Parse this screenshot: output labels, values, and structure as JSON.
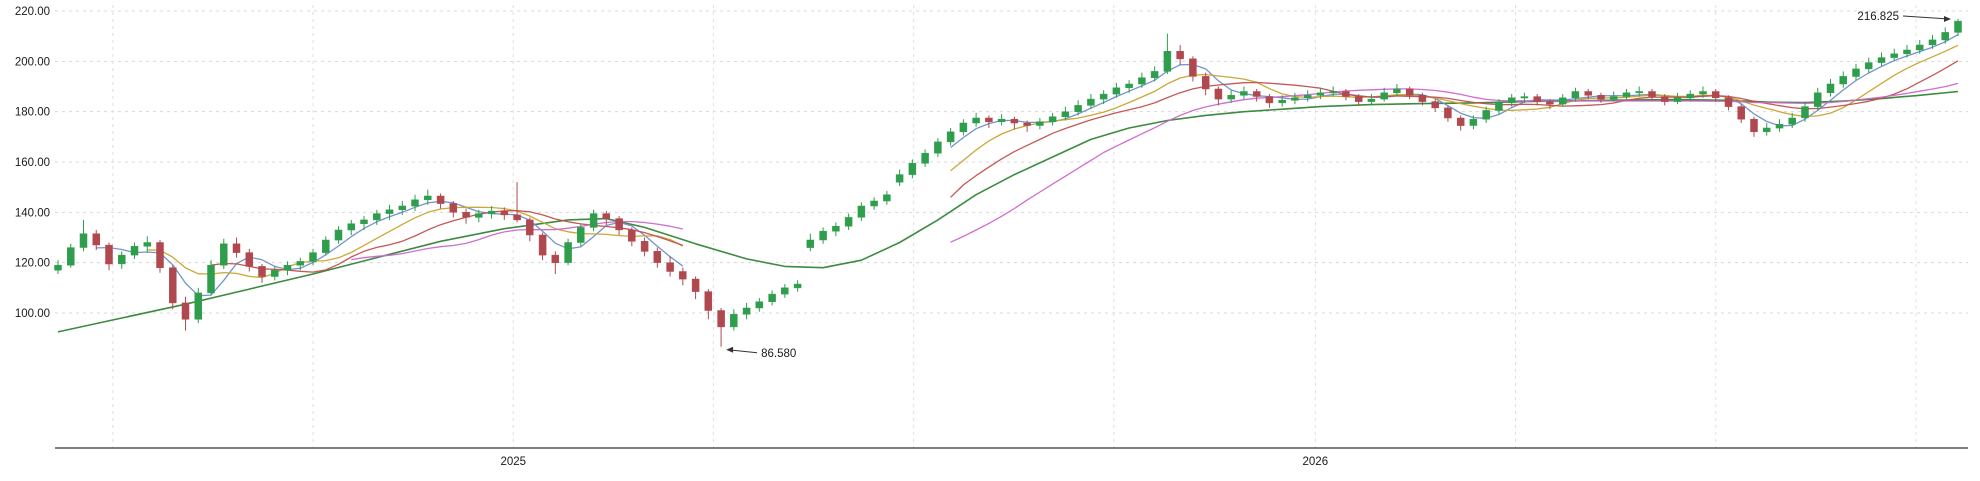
{
  "chart_data": {
    "type": "candlestick",
    "title": "",
    "up_color": "#2f9e4c",
    "down_color": "#b0494f",
    "axis_color": "#555555",
    "grid_color": "#d8d8d8",
    "y_axis": {
      "labels": [
        "220.00",
        "200.00",
        "180.00",
        "160.00",
        "140.00",
        "120.00",
        "100.00"
      ],
      "values": [
        220,
        200,
        180,
        160,
        140,
        120,
        100
      ]
    },
    "x_axis": {
      "ticks": [
        {
          "label": "2025",
          "index": 35.7
        },
        {
          "label": "2026",
          "index": 98.6
        }
      ],
      "gridline_indices": [
        4.3,
        20,
        35.7,
        51.4,
        67.1,
        82.8,
        98.6,
        114.3,
        130,
        145.7
      ]
    },
    "candles": [
      [
        117.0,
        121.0,
        115.5,
        119.0
      ],
      [
        119.0,
        127.5,
        118.0,
        126.0
      ],
      [
        126.0,
        137.0,
        124.5,
        131.5
      ],
      [
        131.5,
        133.0,
        125.0,
        127.0
      ],
      [
        127.0,
        128.0,
        117.0,
        119.5
      ],
      [
        119.5,
        124.5,
        117.5,
        123.0
      ],
      [
        123.0,
        128.0,
        121.5,
        126.5
      ],
      [
        126.5,
        130.5,
        124.0,
        128.0
      ],
      [
        128.0,
        129.0,
        116.0,
        118.0
      ],
      [
        118.0,
        119.0,
        101.5,
        104.0
      ],
      [
        104.0,
        106.5,
        93.0,
        97.5
      ],
      [
        97.5,
        110.0,
        96.0,
        108.0
      ],
      [
        108.0,
        121.0,
        107.0,
        119.0
      ],
      [
        119.0,
        129.5,
        117.5,
        127.5
      ],
      [
        127.5,
        130.0,
        122.0,
        124.0
      ],
      [
        124.0,
        125.5,
        116.5,
        118.5
      ],
      [
        118.5,
        119.5,
        112.0,
        114.5
      ],
      [
        114.5,
        118.5,
        113.0,
        117.0
      ],
      [
        117.0,
        120.5,
        115.0,
        119.0
      ],
      [
        119.0,
        122.0,
        117.0,
        120.5
      ],
      [
        120.5,
        125.5,
        119.0,
        124.0
      ],
      [
        124.0,
        130.5,
        123.0,
        129.0
      ],
      [
        129.0,
        134.5,
        127.5,
        133.0
      ],
      [
        133.0,
        137.0,
        131.0,
        135.5
      ],
      [
        135.5,
        138.5,
        133.0,
        137.0
      ],
      [
        137.0,
        141.0,
        135.0,
        139.5
      ],
      [
        139.5,
        143.0,
        137.0,
        141.0
      ],
      [
        141.0,
        144.5,
        139.0,
        142.5
      ],
      [
        142.5,
        147.0,
        140.5,
        145.0
      ],
      [
        145.0,
        149.0,
        143.0,
        146.5
      ],
      [
        146.5,
        147.5,
        141.5,
        143.5
      ],
      [
        143.5,
        144.5,
        138.0,
        140.0
      ],
      [
        140.0,
        141.5,
        135.5,
        138.0
      ],
      [
        138.0,
        141.0,
        136.0,
        139.5
      ],
      [
        139.5,
        142.5,
        137.5,
        140.5
      ],
      [
        140.5,
        142.0,
        137.0,
        139.0
      ],
      [
        139.0,
        152.0,
        136.0,
        137.0
      ],
      [
        137.0,
        138.0,
        128.5,
        131.0
      ],
      [
        131.0,
        132.0,
        121.0,
        123.0
      ],
      [
        123.0,
        124.5,
        115.5,
        120.0
      ],
      [
        120.0,
        129.5,
        119.0,
        128.0
      ],
      [
        128.0,
        135.5,
        126.5,
        134.0
      ],
      [
        134.0,
        141.0,
        132.5,
        139.5
      ],
      [
        139.5,
        140.5,
        135.0,
        137.5
      ],
      [
        137.5,
        138.5,
        131.0,
        133.0
      ],
      [
        133.0,
        134.0,
        126.5,
        128.5
      ],
      [
        128.5,
        130.0,
        122.5,
        124.5
      ],
      [
        124.5,
        126.0,
        118.0,
        120.0
      ],
      [
        120.0,
        122.5,
        114.5,
        116.5
      ],
      [
        116.5,
        118.0,
        111.0,
        113.5
      ],
      [
        113.5,
        114.5,
        105.5,
        108.5
      ],
      [
        108.5,
        109.5,
        97.5,
        101.0
      ],
      [
        101.0,
        102.0,
        86.58,
        94.5
      ],
      [
        94.5,
        101.5,
        93.0,
        99.5
      ],
      [
        99.5,
        104.0,
        97.5,
        102.0
      ],
      [
        102.0,
        106.0,
        100.5,
        104.5
      ],
      [
        104.5,
        109.0,
        103.0,
        107.5
      ],
      [
        107.5,
        111.5,
        106.0,
        110.0
      ],
      [
        110.0,
        113.0,
        108.5,
        111.5
      ],
      [
        126.0,
        131.5,
        124.5,
        129.0
      ],
      [
        129.0,
        134.0,
        127.5,
        132.5
      ],
      [
        132.5,
        136.0,
        130.5,
        134.5
      ],
      [
        134.5,
        139.5,
        133.0,
        138.0
      ],
      [
        138.0,
        144.0,
        136.5,
        142.5
      ],
      [
        142.5,
        146.0,
        141.0,
        144.5
      ],
      [
        144.5,
        148.5,
        143.0,
        147.0
      ],
      [
        152.0,
        157.0,
        150.5,
        155.0
      ],
      [
        155.0,
        161.0,
        153.5,
        159.5
      ],
      [
        159.5,
        165.0,
        158.0,
        163.5
      ],
      [
        163.5,
        169.5,
        162.0,
        168.0
      ],
      [
        168.0,
        173.5,
        166.5,
        172.0
      ],
      [
        172.0,
        177.0,
        170.5,
        175.5
      ],
      [
        175.5,
        179.5,
        174.0,
        177.5
      ],
      [
        177.5,
        178.5,
        173.5,
        176.0
      ],
      [
        176.0,
        179.0,
        174.5,
        177.0
      ],
      [
        177.0,
        178.0,
        173.0,
        175.5
      ],
      [
        175.5,
        176.5,
        172.0,
        174.5
      ],
      [
        174.5,
        177.5,
        173.0,
        176.0
      ],
      [
        176.0,
        179.5,
        174.5,
        178.0
      ],
      [
        178.0,
        182.0,
        176.5,
        180.0
      ],
      [
        180.0,
        184.5,
        178.5,
        182.5
      ],
      [
        182.5,
        187.0,
        181.0,
        185.0
      ],
      [
        185.0,
        188.5,
        183.0,
        187.0
      ],
      [
        187.0,
        191.5,
        185.5,
        189.5
      ],
      [
        189.5,
        192.5,
        187.5,
        191.0
      ],
      [
        191.0,
        195.5,
        189.5,
        193.5
      ],
      [
        193.5,
        198.0,
        192.0,
        196.0
      ],
      [
        196.0,
        211.0,
        195.0,
        204.0
      ],
      [
        204.0,
        206.5,
        198.5,
        201.0
      ],
      [
        201.0,
        202.0,
        192.0,
        194.0
      ],
      [
        194.0,
        195.5,
        186.5,
        189.0
      ],
      [
        189.0,
        190.0,
        182.5,
        185.0
      ],
      [
        185.0,
        188.5,
        183.5,
        186.5
      ],
      [
        186.5,
        190.0,
        185.0,
        188.0
      ],
      [
        188.0,
        189.0,
        184.0,
        186.0
      ],
      [
        186.0,
        187.0,
        181.5,
        183.5
      ],
      [
        183.5,
        186.5,
        182.0,
        184.5
      ],
      [
        184.5,
        187.5,
        183.0,
        185.5
      ],
      [
        185.5,
        188.5,
        184.0,
        186.5
      ],
      [
        186.5,
        189.5,
        185.0,
        187.5
      ],
      [
        187.5,
        190.0,
        186.0,
        188.0
      ],
      [
        188.0,
        189.0,
        184.5,
        186.0
      ],
      [
        186.0,
        187.0,
        182.5,
        184.0
      ],
      [
        184.0,
        187.0,
        182.5,
        185.0
      ],
      [
        185.0,
        189.5,
        184.0,
        187.5
      ],
      [
        187.5,
        191.0,
        186.0,
        189.0
      ],
      [
        189.0,
        190.0,
        185.0,
        186.5
      ],
      [
        186.5,
        187.5,
        182.5,
        184.0
      ],
      [
        184.0,
        185.0,
        180.0,
        181.5
      ],
      [
        181.5,
        182.5,
        176.0,
        177.5
      ],
      [
        177.5,
        178.5,
        172.5,
        174.5
      ],
      [
        174.5,
        178.5,
        173.0,
        177.0
      ],
      [
        177.0,
        182.0,
        175.5,
        180.5
      ],
      [
        180.5,
        185.0,
        179.0,
        183.5
      ],
      [
        183.5,
        187.0,
        182.0,
        185.5
      ],
      [
        185.5,
        187.5,
        183.5,
        186.0
      ],
      [
        186.0,
        187.0,
        182.5,
        184.0
      ],
      [
        184.0,
        185.0,
        181.0,
        183.0
      ],
      [
        183.0,
        187.0,
        182.0,
        185.5
      ],
      [
        185.5,
        189.5,
        184.0,
        188.0
      ],
      [
        188.0,
        189.0,
        185.0,
        186.5
      ],
      [
        186.5,
        187.5,
        183.5,
        185.0
      ],
      [
        185.0,
        188.0,
        184.0,
        186.0
      ],
      [
        186.0,
        189.0,
        185.0,
        187.5
      ],
      [
        187.5,
        190.0,
        186.0,
        188.0
      ],
      [
        188.0,
        189.0,
        184.5,
        186.0
      ],
      [
        186.0,
        187.0,
        182.5,
        184.0
      ],
      [
        184.0,
        187.5,
        183.0,
        185.5
      ],
      [
        185.5,
        188.5,
        184.0,
        187.0
      ],
      [
        187.0,
        190.0,
        185.5,
        188.0
      ],
      [
        188.0,
        189.0,
        184.0,
        185.5
      ],
      [
        185.5,
        186.5,
        180.5,
        182.0
      ],
      [
        182.0,
        183.0,
        175.5,
        177.0
      ],
      [
        177.0,
        178.0,
        170.0,
        172.0
      ],
      [
        172.0,
        175.5,
        170.5,
        173.5
      ],
      [
        173.5,
        177.0,
        172.0,
        175.0
      ],
      [
        175.0,
        179.5,
        173.5,
        177.5
      ],
      [
        177.5,
        184.0,
        176.0,
        182.0
      ],
      [
        182.0,
        189.5,
        180.5,
        187.5
      ],
      [
        187.5,
        193.0,
        186.0,
        191.0
      ],
      [
        191.0,
        196.0,
        189.5,
        194.0
      ],
      [
        194.0,
        199.0,
        192.5,
        197.0
      ],
      [
        197.0,
        201.5,
        195.5,
        199.5
      ],
      [
        199.5,
        203.5,
        198.0,
        201.5
      ],
      [
        201.5,
        205.0,
        200.0,
        203.0
      ],
      [
        203.0,
        206.5,
        201.5,
        204.5
      ],
      [
        204.5,
        208.5,
        203.0,
        206.5
      ],
      [
        206.5,
        210.5,
        205.0,
        208.5
      ],
      [
        208.5,
        213.5,
        207.0,
        211.5
      ],
      [
        211.5,
        216.825,
        210.0,
        216.0
      ]
    ],
    "overlays": [
      {
        "name": "ma-fast",
        "period": 4,
        "color": "#6b8fc9"
      },
      {
        "name": "ma-medium",
        "period": 8,
        "color": "#c9a22a"
      },
      {
        "name": "ma-slow",
        "period": 13,
        "color": "#c0504d"
      },
      {
        "name": "ma-slower",
        "period": 24,
        "color": "#cc66cc"
      }
    ],
    "overlay_gap": [
      50,
      70
    ],
    "trend_line": {
      "name": "long-term-moving-average",
      "color": "#3d8b40",
      "points": [
        [
          0,
          92.5
        ],
        [
          5,
          98
        ],
        [
          10,
          103.5
        ],
        [
          15,
          109.5
        ],
        [
          20,
          115.5
        ],
        [
          25,
          122
        ],
        [
          30,
          128.5
        ],
        [
          35,
          133.5
        ],
        [
          40,
          137
        ],
        [
          43,
          137.5
        ],
        [
          46,
          134
        ],
        [
          50,
          127.5
        ],
        [
          54,
          121.5
        ],
        [
          57,
          118.5
        ],
        [
          60,
          118
        ],
        [
          63,
          121
        ],
        [
          66,
          128
        ],
        [
          69,
          137
        ],
        [
          72,
          147
        ],
        [
          75,
          155
        ],
        [
          78,
          162
        ],
        [
          81,
          169
        ],
        [
          84,
          173.5
        ],
        [
          87,
          176.5
        ],
        [
          90,
          178.5
        ],
        [
          93,
          180
        ],
        [
          96,
          181
        ],
        [
          99,
          182
        ],
        [
          103,
          182.8
        ],
        [
          107,
          183.2
        ],
        [
          111,
          183.5
        ],
        [
          115,
          184
        ],
        [
          119,
          184.3
        ],
        [
          123,
          184.6
        ],
        [
          127,
          184.8
        ],
        [
          131,
          184.5
        ],
        [
          134,
          183.8
        ],
        [
          137,
          183.6
        ],
        [
          140,
          184.2
        ],
        [
          143,
          185.2
        ],
        [
          146,
          186.5
        ],
        [
          149,
          188
        ]
      ]
    },
    "annotations": [
      {
        "label": "216.825",
        "index": 149,
        "price": 216.825,
        "direction": "right"
      },
      {
        "label": "86.580",
        "index": 52,
        "price": 86.58,
        "direction": "left"
      }
    ]
  }
}
